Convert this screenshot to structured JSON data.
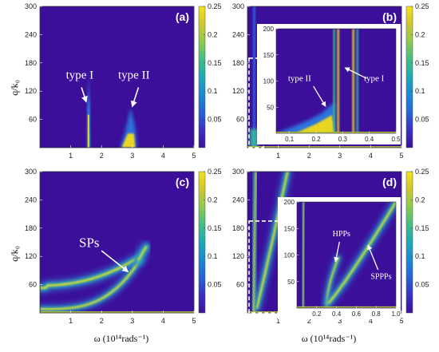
{
  "figure": {
    "xlabel": "ω (10¹⁴rads⁻¹)",
    "ylabel": "q/k₀"
  },
  "colors": {
    "background": "#3b0f9a",
    "colormap": [
      "#3e0f9c",
      "#3a2ec5",
      "#2563dc",
      "#1b8ad4",
      "#20a8b4",
      "#40bd86",
      "#8cca4f",
      "#d2c72d",
      "#f5e21a"
    ]
  },
  "chart_data": [
    {
      "id": "a",
      "panel_label": "(a)",
      "type": "heatmap",
      "x_ticks": [
        "1",
        "2",
        "3",
        "4",
        "5"
      ],
      "y_ticks": [
        "60",
        "120",
        "180",
        "240",
        "300"
      ],
      "xlim": [
        0,
        5
      ],
      "ylim": [
        0,
        300
      ],
      "colorbar": {
        "ticks": [
          "0.05",
          "0.1",
          "0.15",
          "0.2",
          "0.25"
        ],
        "range": [
          0,
          0.25
        ]
      },
      "annotations": [
        {
          "text": "type I",
          "x": 1.5,
          "y": 140
        },
        {
          "text": "type II",
          "x": 3.0,
          "y": 140
        }
      ]
    },
    {
      "id": "b",
      "panel_label": "(b)",
      "type": "heatmap",
      "x_ticks": [
        "1",
        "2",
        "3",
        "4",
        "5"
      ],
      "y_ticks": [
        "60",
        "120",
        "180",
        "240",
        "300"
      ],
      "xlim": [
        0,
        5
      ],
      "ylim": [
        0,
        300
      ],
      "colorbar": {
        "ticks": [
          "0.05",
          "0.1",
          "0.15",
          "0.2",
          "0.25"
        ],
        "range": [
          0,
          0.25
        ]
      },
      "inset": {
        "x_ticks": [
          "0.1",
          "0.2",
          "0.3",
          "0.4",
          "0.5"
        ],
        "y_ticks": [
          "50",
          "100",
          "150",
          "200"
        ],
        "xlim": [
          0.05,
          0.5
        ],
        "ylim": [
          0,
          200
        ],
        "annotations": [
          {
            "text": "type II",
            "x": 0.15,
            "y": 100
          },
          {
            "text": "type I",
            "x": 0.4,
            "y": 100
          }
        ]
      }
    },
    {
      "id": "c",
      "panel_label": "(c)",
      "type": "heatmap",
      "x_ticks": [
        "1",
        "2",
        "3",
        "4",
        "5"
      ],
      "y_ticks": [
        "60",
        "120",
        "180",
        "240",
        "300"
      ],
      "xlim": [
        0,
        5
      ],
      "ylim": [
        0,
        300
      ],
      "colorbar": {
        "ticks": [
          "0.05",
          "0.1",
          "0.15",
          "0.2",
          "0.25"
        ],
        "range": [
          0,
          0.25
        ]
      },
      "annotations": [
        {
          "text": "SPs",
          "x": 1.6,
          "y": 140
        }
      ]
    },
    {
      "id": "d",
      "panel_label": "(d)",
      "type": "heatmap",
      "x_ticks": [
        "1",
        "2",
        "3",
        "4",
        "5"
      ],
      "y_ticks": [
        "60",
        "120",
        "180",
        "240",
        "300"
      ],
      "xlim": [
        0,
        5
      ],
      "ylim": [
        0,
        300
      ],
      "colorbar": {
        "ticks": [
          "0.05",
          "0.1",
          "0.15",
          "0.2",
          "0.25"
        ],
        "range": [
          0,
          0.25
        ]
      },
      "inset": {
        "x_ticks": [
          "0.2",
          "0.4",
          "0.6",
          "0.8",
          "1.0"
        ],
        "y_ticks": [
          "50",
          "100",
          "150",
          "200"
        ],
        "xlim": [
          0,
          1.0
        ],
        "ylim": [
          0,
          200
        ],
        "annotations": [
          {
            "text": "HPPs",
            "x": 0.45,
            "y": 135
          },
          {
            "text": "SPPPs",
            "x": 0.85,
            "y": 55
          }
        ]
      }
    }
  ]
}
